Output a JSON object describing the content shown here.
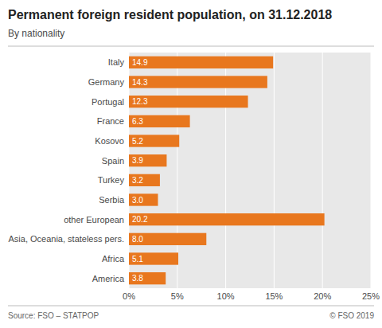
{
  "chart_data": {
    "type": "bar",
    "orientation": "horizontal",
    "title": "Permanent foreign resident population, on 31.12.2018",
    "subtitle": "By nationality",
    "annotations": [
      "Source: FSO – STATPOP",
      "© FSO 2019"
    ],
    "categories": [
      "Italy",
      "Germany",
      "Portugal",
      "France",
      "Kosovo",
      "Spain",
      "Turkey",
      "Serbia",
      "other European",
      "Asia, Oceania, stateless pers.",
      "Africa",
      "America"
    ],
    "values": [
      14.9,
      14.3,
      12.3,
      6.3,
      5.2,
      3.9,
      3.2,
      3.0,
      20.2,
      8.0,
      5.1,
      3.8
    ],
    "value_labels": [
      "14.9",
      "14.3",
      "12.3",
      "6.3",
      "5.2",
      "3.9",
      "3.2",
      "3.0",
      "20.2",
      "8.0",
      "5.1",
      "3.8"
    ],
    "data_labels": true,
    "color": "#E8771E",
    "xlim": [
      0,
      25
    ],
    "xticks": [
      {
        "value": 0,
        "label": "0%"
      },
      {
        "value": 5,
        "label": "5%"
      },
      {
        "value": 10,
        "label": "10%"
      },
      {
        "value": 15,
        "label": "15%"
      },
      {
        "value": 20,
        "label": "20%"
      },
      {
        "value": 25,
        "label": "25%"
      }
    ],
    "grid": true
  }
}
